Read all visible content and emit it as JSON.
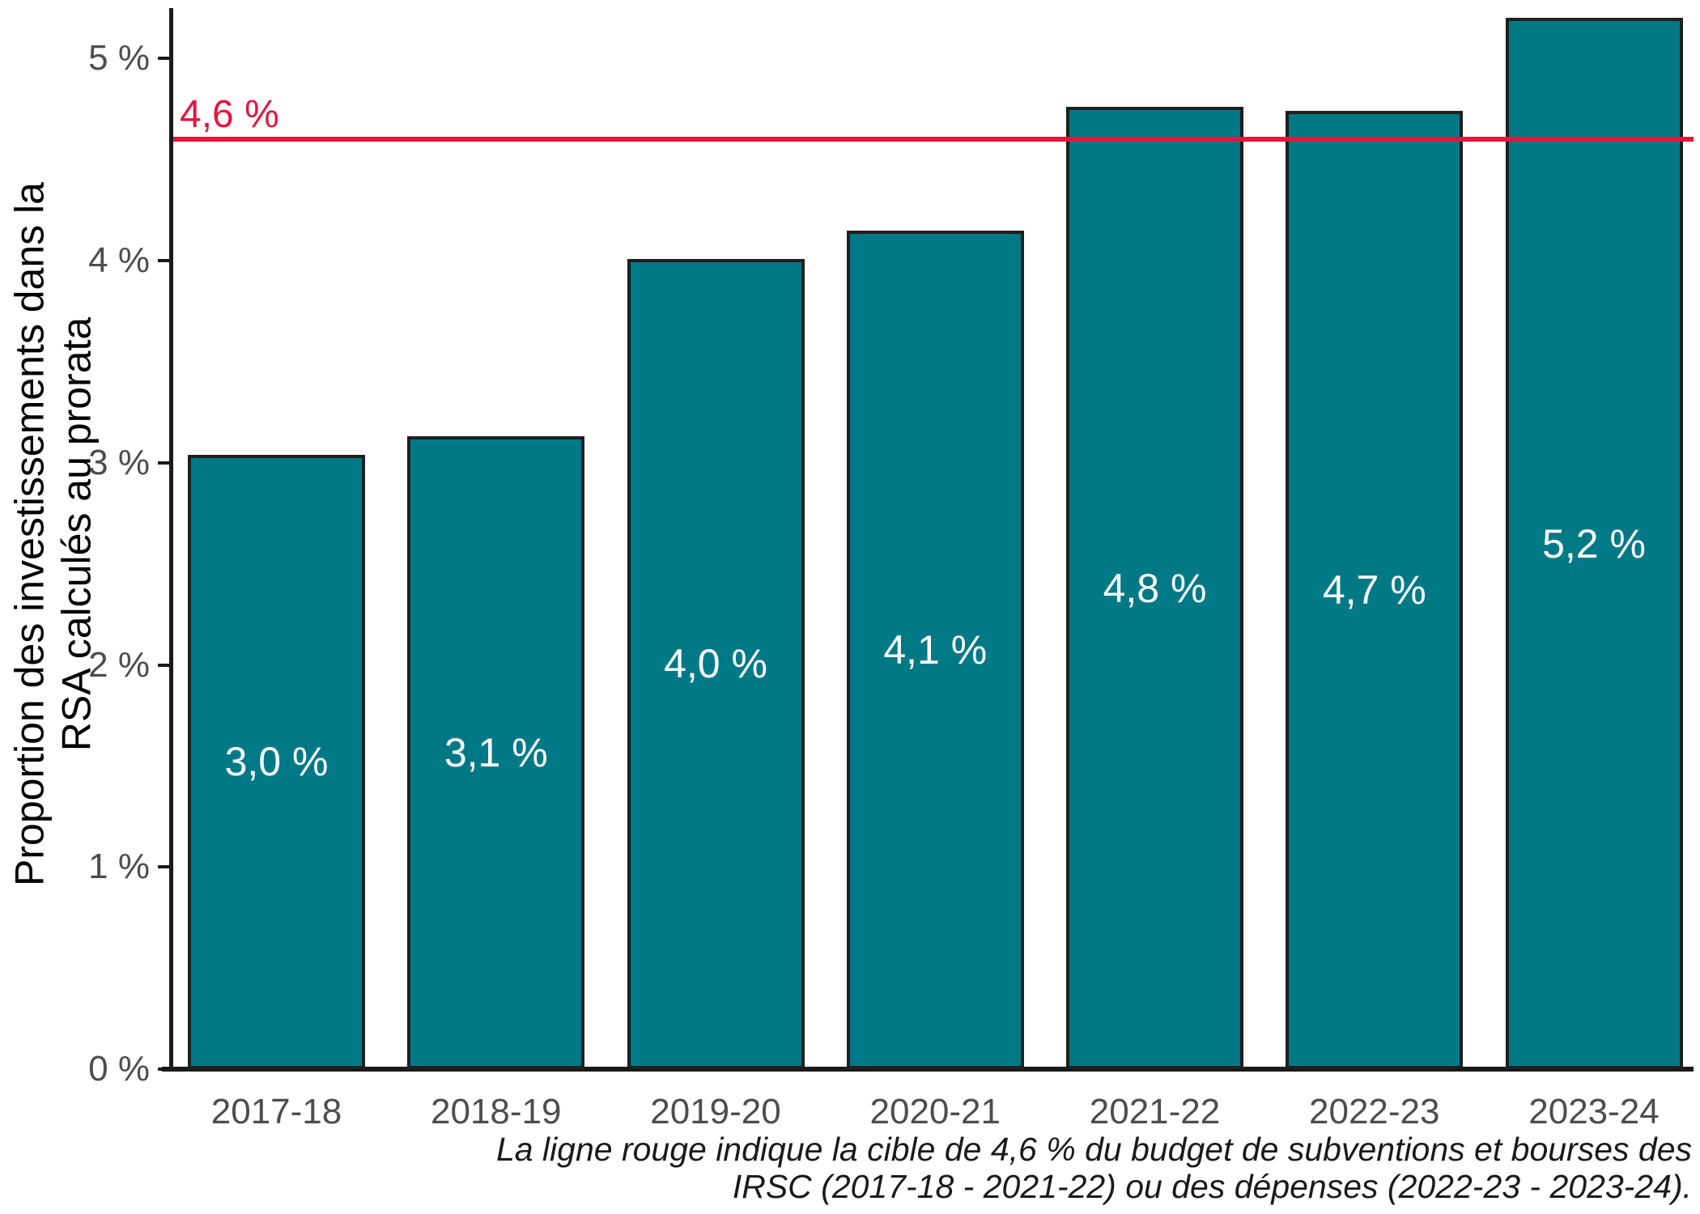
{
  "chart_data": {
    "type": "bar",
    "title": "",
    "ylabel_lines": [
      "Proportion des investissements dans la",
      "RSA calculés au prorata"
    ],
    "categories": [
      "2017-18",
      "2018-19",
      "2019-20",
      "2020-21",
      "2021-22",
      "2022-23",
      "2023-24"
    ],
    "values": [
      3.04,
      3.13,
      4.01,
      4.15,
      4.76,
      4.74,
      5.2
    ],
    "bar_value_labels": [
      "3,0 %",
      "3,1 %",
      "4,0 %",
      "4,1 %",
      "4,8 %",
      "4,7 %",
      "5,2 %"
    ],
    "ytick_values": [
      0,
      1,
      2,
      3,
      4,
      5
    ],
    "ytick_labels": [
      "0 %",
      "1 %",
      "2 %",
      "3 %",
      "4 %",
      "5 %"
    ],
    "ylim": [
      0,
      5.25
    ],
    "grid": "off",
    "legend": "none",
    "target_line": {
      "value": 4.6,
      "label": "4,6 %"
    },
    "caption_lines": [
      "La ligne rouge indique la cible de 4,6 % du budget de subventions et bourses des",
      "IRSC (2017-18 - 2021-22) ou des dépenses (2022-23 - 2023-24)."
    ],
    "colors": {
      "bar_fill": "#007987",
      "bar_border": "#1f1f1f",
      "axis": "#1a1a1a",
      "tick_text": "#4d4d4d",
      "bar_label_text": "#ffffff",
      "target_line": "#e1173f",
      "caption_text": "#1a1a1a",
      "ylabel_text": "#000000"
    }
  }
}
